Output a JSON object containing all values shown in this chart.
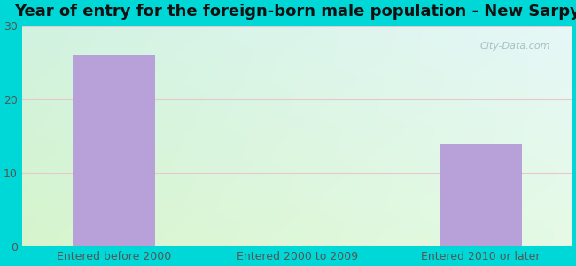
{
  "title": "Year of entry for the foreign-born male population - New Sarpy",
  "categories": [
    "Entered before 2000",
    "Entered 2000 to 2009",
    "Entered 2010 or later"
  ],
  "values": [
    26,
    0,
    14
  ],
  "bar_color": "#b8a0d8",
  "ylim": [
    0,
    30
  ],
  "yticks": [
    0,
    10,
    20,
    30
  ],
  "outer_bg": "#00d8d8",
  "plot_bg_topleft": "#d8f0e8",
  "plot_bg_topright": "#d8eef4",
  "plot_bg_bottomleft": "#d8f0d0",
  "plot_bg_bottomright": "#e8f8f0",
  "title_fontsize": 13,
  "tick_fontsize": 9,
  "watermark": "City-Data.com"
}
